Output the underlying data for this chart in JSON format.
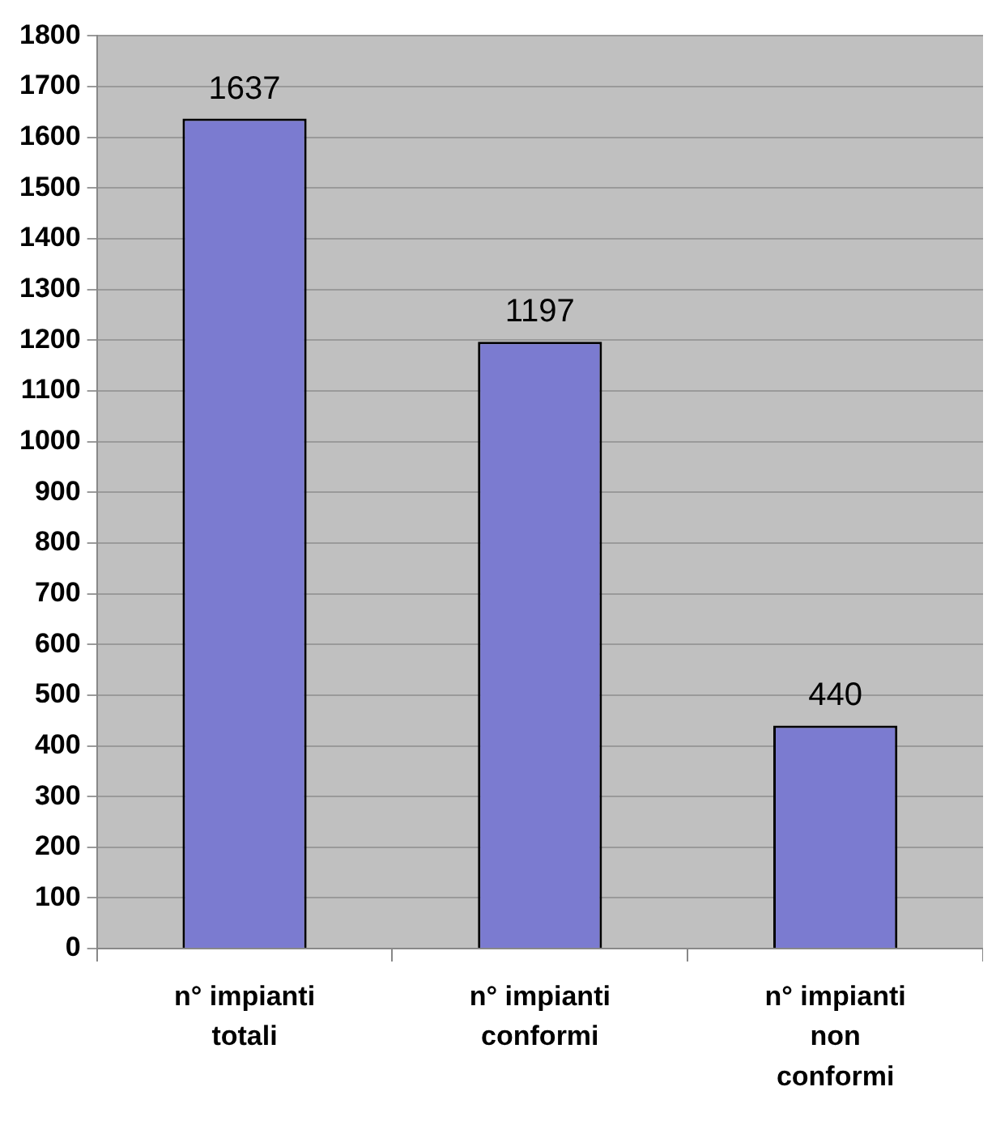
{
  "chart_data": {
    "type": "bar",
    "categories": [
      "n° impianti totali",
      "n° impianti conformi",
      "n° impianti non conformi"
    ],
    "values": [
      1637,
      1197,
      440
    ],
    "color": "#7b7bd0",
    "ylim": [
      0,
      1800
    ],
    "yticks": [
      0,
      100,
      200,
      300,
      400,
      500,
      600,
      700,
      800,
      900,
      1000,
      1100,
      1200,
      1300,
      1400,
      1500,
      1600,
      1700,
      1800
    ],
    "grid": "y",
    "data_labels": true
  }
}
